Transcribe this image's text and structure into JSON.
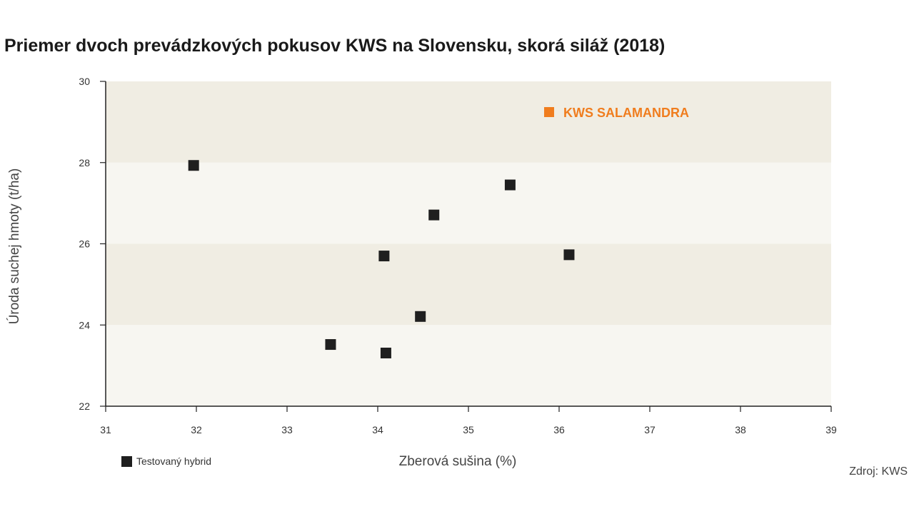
{
  "chart_data": {
    "type": "scatter",
    "title": "Priemer dvoch prevádzkových pokusov KWS na Slovensku, skorá siláž (2018)",
    "xlabel": "Zberová sušina (%)",
    "ylabel": "Úroda suchej hmoty (t/ha)",
    "xlim": [
      31,
      39
    ],
    "ylim": [
      22,
      30
    ],
    "xticks": [
      "31",
      "32",
      "33",
      "34",
      "35",
      "36",
      "37",
      "38",
      "39"
    ],
    "yticks": [
      "22",
      "24",
      "26",
      "28",
      "30"
    ],
    "series": [
      {
        "name": "Testovaný hybrid",
        "color": "#1f1f1f",
        "points": [
          {
            "x": 31.97,
            "y": 27.93
          },
          {
            "x": 35.46,
            "y": 27.45
          },
          {
            "x": 34.62,
            "y": 26.71
          },
          {
            "x": 34.07,
            "y": 25.7
          },
          {
            "x": 36.11,
            "y": 25.73
          },
          {
            "x": 34.47,
            "y": 24.21
          },
          {
            "x": 33.48,
            "y": 23.52
          },
          {
            "x": 34.09,
            "y": 23.31
          }
        ]
      }
    ],
    "highlight": {
      "label": "KWS SALAMANDRA",
      "color": "#f07d1e",
      "position": "top-right"
    },
    "bands": {
      "color_dark": "#f0ede3",
      "color_light": "#f7f6f1"
    },
    "legend_position": "bottom-left"
  },
  "legend": {
    "label": "Testovaný hybrid"
  },
  "source": "Zdroj: KWS"
}
